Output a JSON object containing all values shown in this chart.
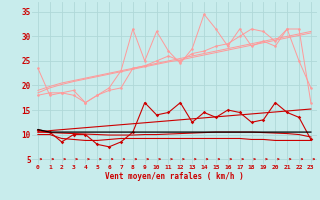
{
  "background_color": "#c8ecec",
  "grid_color": "#b0d8d8",
  "xlabel": "Vent moyen/en rafales ( km/h )",
  "ylabel_ticks": [
    5,
    10,
    15,
    20,
    25,
    30,
    35
  ],
  "xlim": [
    -0.5,
    23.5
  ],
  "ylim": [
    4.0,
    37.0
  ],
  "x": [
    0,
    1,
    2,
    3,
    4,
    5,
    6,
    7,
    8,
    9,
    10,
    11,
    12,
    13,
    14,
    15,
    16,
    17,
    18,
    19,
    20,
    21,
    22,
    23
  ],
  "line_pink1": [
    23.5,
    18.0,
    18.5,
    19.0,
    16.5,
    18.0,
    19.0,
    19.5,
    23.5,
    24.0,
    25.0,
    26.0,
    25.0,
    26.5,
    27.0,
    28.0,
    28.5,
    30.0,
    31.5,
    31.0,
    29.0,
    31.5,
    25.0,
    19.5
  ],
  "line_pink2": [
    18.0,
    18.5,
    18.5,
    18.0,
    16.5,
    18.0,
    19.5,
    23.0,
    31.5,
    25.0,
    31.0,
    27.0,
    24.5,
    27.5,
    34.5,
    31.5,
    28.0,
    31.5,
    28.0,
    29.0,
    28.0,
    31.5,
    31.5,
    16.5
  ],
  "line_pink_straight1": [
    19.0,
    19.8,
    20.5,
    21.0,
    21.5,
    22.0,
    22.5,
    23.0,
    23.5,
    24.0,
    24.5,
    25.0,
    25.5,
    26.0,
    26.5,
    27.0,
    27.5,
    28.0,
    28.5,
    29.0,
    29.5,
    30.0,
    30.5,
    31.0
  ],
  "line_pink_straight2": [
    18.5,
    19.5,
    20.2,
    20.8,
    21.3,
    21.8,
    22.3,
    22.8,
    23.3,
    23.8,
    24.3,
    24.8,
    25.2,
    25.7,
    26.2,
    26.7,
    27.2,
    27.7,
    28.2,
    28.7,
    29.2,
    29.7,
    30.2,
    30.7
  ],
  "line_red_zigzag": [
    11.0,
    10.5,
    8.5,
    10.0,
    10.0,
    8.0,
    7.5,
    8.5,
    10.5,
    16.5,
    14.0,
    14.5,
    16.5,
    12.5,
    14.5,
    13.5,
    15.0,
    14.5,
    12.5,
    13.0,
    16.5,
    14.5,
    13.5,
    9.0
  ],
  "line_red_straight1": [
    10.5,
    10.8,
    11.0,
    11.2,
    11.4,
    11.6,
    11.8,
    12.0,
    12.2,
    12.4,
    12.6,
    12.8,
    13.0,
    13.2,
    13.4,
    13.6,
    13.8,
    14.0,
    14.2,
    14.4,
    14.6,
    14.8,
    15.0,
    15.2
  ],
  "line_red_straight2": [
    10.5,
    10.4,
    10.3,
    10.2,
    10.1,
    10.0,
    9.9,
    9.9,
    9.9,
    10.0,
    10.0,
    10.1,
    10.2,
    10.3,
    10.4,
    10.5,
    10.5,
    10.5,
    10.5,
    10.4,
    10.3,
    10.2,
    10.0,
    9.5
  ],
  "line_red_low": [
    10.0,
    10.0,
    9.2,
    9.0,
    8.8,
    8.8,
    9.0,
    9.2,
    9.2,
    9.2,
    9.2,
    9.2,
    9.2,
    9.2,
    9.2,
    9.2,
    9.2,
    9.2,
    9.0,
    9.0,
    8.8,
    8.8,
    8.8,
    8.8
  ],
  "line_black": [
    11.0,
    10.5,
    10.5,
    10.5,
    10.5,
    10.5,
    10.5,
    10.5,
    10.5,
    10.5,
    10.5,
    10.5,
    10.5,
    10.5,
    10.5,
    10.5,
    10.5,
    10.5,
    10.5,
    10.5,
    10.5,
    10.5,
    10.5,
    10.5
  ],
  "pink_color": "#ff9999",
  "red_color": "#cc0000",
  "black_color": "#000000",
  "xtick_labels": [
    "0",
    "1",
    "2",
    "3",
    "4",
    "5",
    "6",
    "7",
    "8",
    "9",
    "10",
    "11",
    "12",
    "13",
    "14",
    "15",
    "16",
    "17",
    "18",
    "19",
    "20",
    "21",
    "22",
    "23"
  ]
}
